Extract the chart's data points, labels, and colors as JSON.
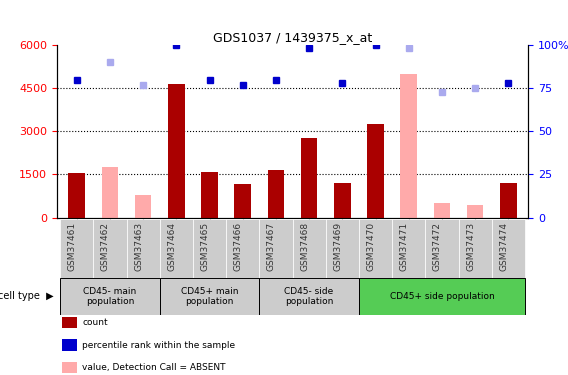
{
  "title": "GDS1037 / 1439375_x_at",
  "samples": [
    "GSM37461",
    "GSM37462",
    "GSM37463",
    "GSM37464",
    "GSM37465",
    "GSM37466",
    "GSM37467",
    "GSM37468",
    "GSM37469",
    "GSM37470",
    "GSM37471",
    "GSM37472",
    "GSM37473",
    "GSM37474"
  ],
  "count_values": [
    1550,
    null,
    null,
    4650,
    1600,
    1150,
    1650,
    2750,
    1200,
    3250,
    null,
    null,
    null,
    1200
  ],
  "count_absent": [
    null,
    1750,
    800,
    null,
    null,
    null,
    null,
    null,
    null,
    null,
    5000,
    500,
    450,
    null
  ],
  "rank_present": [
    80,
    null,
    null,
    100,
    80,
    77,
    80,
    98,
    78,
    100,
    null,
    null,
    null,
    78
  ],
  "rank_absent": [
    null,
    90,
    77,
    null,
    null,
    null,
    null,
    null,
    null,
    null,
    98,
    73,
    75,
    null
  ],
  "cell_type_groups": [
    {
      "label": "CD45- main\npopulation",
      "start": 0,
      "end": 2,
      "color": "#ccddcc"
    },
    {
      "label": "CD45+ main\npopulation",
      "start": 3,
      "end": 5,
      "color": "#ccddcc"
    },
    {
      "label": "CD45- side\npopulation",
      "start": 6,
      "end": 8,
      "color": "#ccddcc"
    },
    {
      "label": "CD45+ side population",
      "start": 9,
      "end": 13,
      "color": "#44cc44"
    }
  ],
  "ylim_left": [
    0,
    6000
  ],
  "ylim_right": [
    0,
    100
  ],
  "yticks_left": [
    0,
    1500,
    3000,
    4500,
    6000
  ],
  "yticks_right": [
    0,
    25,
    50,
    75,
    100
  ],
  "bar_color_present": "#aa0000",
  "bar_color_absent": "#ffaaaa",
  "dot_color_present": "#0000cc",
  "dot_color_absent": "#aaaaee",
  "bg_color": "#ffffff",
  "cell_type_bg1": "#cccccc",
  "cell_type_bg2": "#55cc55",
  "cell_type_label_bg": "#dddddd"
}
